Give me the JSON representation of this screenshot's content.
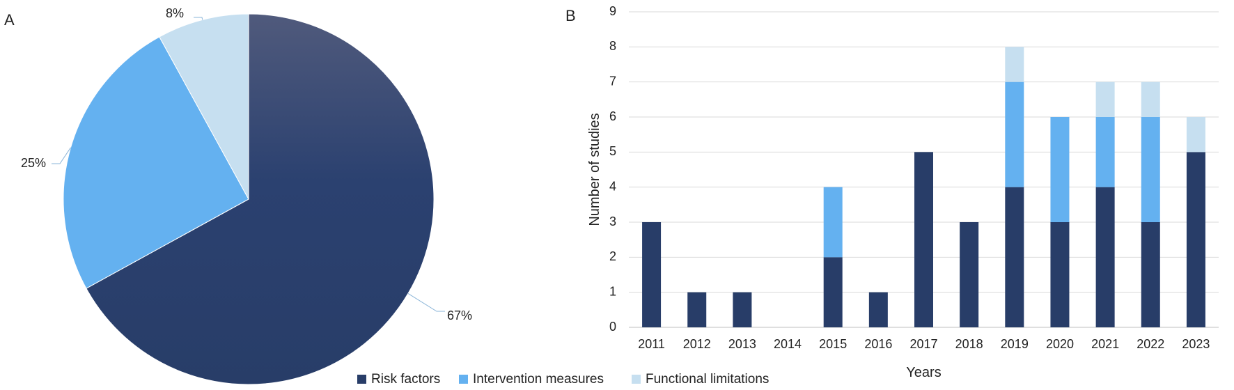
{
  "panel_labels": {
    "a": "A",
    "b": "B"
  },
  "colors": {
    "risk": "#283d68",
    "risk_top": "#505a7c",
    "intervention": "#64b1f0",
    "functional": "#c6dff0",
    "grid": "#d9d9d9",
    "axis": "#bfbfbf",
    "leader": "#8ab4d8"
  },
  "legend": {
    "items": [
      {
        "label": "Risk factors",
        "color": "#283d68"
      },
      {
        "label": "Intervention measures",
        "color": "#64b1f0"
      },
      {
        "label": "Functional limitations",
        "color": "#c6dff0"
      }
    ]
  },
  "chart_data": [
    {
      "type": "pie",
      "panel": "A",
      "slices": [
        {
          "label": "Risk factors",
          "value": 67,
          "display": "67%"
        },
        {
          "label": "Intervention measures",
          "value": 25,
          "display": "25%"
        },
        {
          "label": "Functional limitations",
          "value": 8,
          "display": "8%"
        }
      ]
    },
    {
      "type": "bar",
      "stacked": true,
      "panel": "B",
      "xlabel": "Years",
      "ylabel": "Number of studies",
      "ylim": [
        0,
        9
      ],
      "yticks": [
        0,
        1,
        2,
        3,
        4,
        5,
        6,
        7,
        8,
        9
      ],
      "grid": true,
      "categories": [
        "2011",
        "2012",
        "2013",
        "2014",
        "2015",
        "2016",
        "2017",
        "2018",
        "2019",
        "2020",
        "2021",
        "2022",
        "2023"
      ],
      "series": [
        {
          "name": "Risk factors",
          "values": [
            3,
            1,
            1,
            0,
            2,
            1,
            5,
            3,
            4,
            3,
            4,
            3,
            5
          ]
        },
        {
          "name": "Intervention measures",
          "values": [
            0,
            0,
            0,
            0,
            2,
            0,
            0,
            0,
            3,
            3,
            2,
            3,
            0
          ]
        },
        {
          "name": "Functional limitations",
          "values": [
            0,
            0,
            0,
            0,
            0,
            0,
            0,
            0,
            1,
            0,
            1,
            1,
            1
          ]
        }
      ]
    }
  ]
}
